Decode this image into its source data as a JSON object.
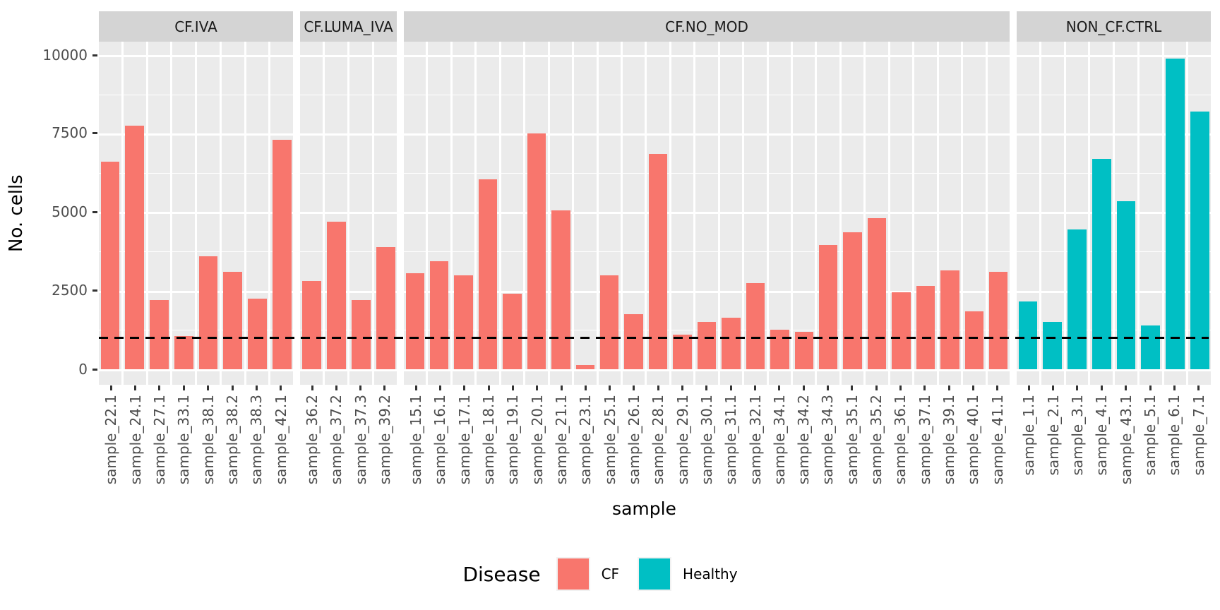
{
  "chart_data": {
    "type": "bar",
    "title": "",
    "xlabel": "sample",
    "ylabel": "No. cells",
    "ylim": [
      0,
      10000
    ],
    "yticks": [
      0,
      2500,
      5000,
      7500,
      10000
    ],
    "ytick_labels": [
      "0",
      "2500",
      "5000",
      "7500",
      "10000"
    ],
    "grid": true,
    "legend_position": "bottom",
    "hline": {
      "value": 1000,
      "style": "dashed",
      "color": "#000000"
    },
    "legend": {
      "title": "Disease",
      "entries": [
        {
          "label": "CF",
          "color": "#F8766D"
        },
        {
          "label": "Healthy",
          "color": "#00BFC4"
        }
      ]
    },
    "facets": [
      {
        "label": "CF.IVA",
        "group": "CF",
        "color": "#F8766D",
        "categories": [
          "sample_22.1",
          "sample_24.1",
          "sample_27.1",
          "sample_33.1",
          "sample_38.1",
          "sample_38.2",
          "sample_38.3",
          "sample_42.1"
        ],
        "values": [
          6600,
          7750,
          2200,
          1050,
          3600,
          3100,
          2250,
          7300
        ]
      },
      {
        "label": "CF.LUMA_IVA",
        "group": "CF",
        "color": "#F8766D",
        "categories": [
          "sample_36.2",
          "sample_37.2",
          "sample_37.3",
          "sample_39.2"
        ],
        "values": [
          2800,
          4700,
          2200,
          3900
        ]
      },
      {
        "label": "CF.NO_MOD",
        "group": "CF",
        "color": "#F8766D",
        "categories": [
          "sample_15.1",
          "sample_16.1",
          "sample_17.1",
          "sample_18.1",
          "sample_19.1",
          "sample_20.1",
          "sample_21.1",
          "sample_23.1",
          "sample_25.1",
          "sample_26.1",
          "sample_28.1",
          "sample_29.1",
          "sample_30.1",
          "sample_31.1",
          "sample_32.1",
          "sample_34.1",
          "sample_34.2",
          "sample_34.3",
          "sample_35.1",
          "sample_35.2",
          "sample_36.1",
          "sample_37.1",
          "sample_39.1",
          "sample_40.1",
          "sample_41.1"
        ],
        "values": [
          3050,
          3450,
          3000,
          6050,
          2400,
          7500,
          5050,
          130,
          3000,
          1750,
          6850,
          1100,
          1500,
          1650,
          2750,
          1250,
          1200,
          3950,
          4350,
          4800,
          2450,
          2650,
          3150,
          1850,
          3100
        ]
      },
      {
        "label": "NON_CF.CTRL",
        "group": "Healthy",
        "color": "#00BFC4",
        "categories": [
          "sample_1.1",
          "sample_2.1",
          "sample_3.1",
          "sample_4.1",
          "sample_43.1",
          "sample_5.1",
          "sample_6.1",
          "sample_7.1"
        ],
        "values": [
          2150,
          1500,
          4450,
          6700,
          5350,
          1400,
          9900,
          8200
        ]
      }
    ]
  },
  "colors": {
    "panel_bg": "#EBEBEB",
    "strip_bg": "#D4D4D4",
    "gridline": "#FFFFFF",
    "axis_text": "#4D4D4D",
    "cf": "#F8766D",
    "healthy": "#00BFC4"
  }
}
